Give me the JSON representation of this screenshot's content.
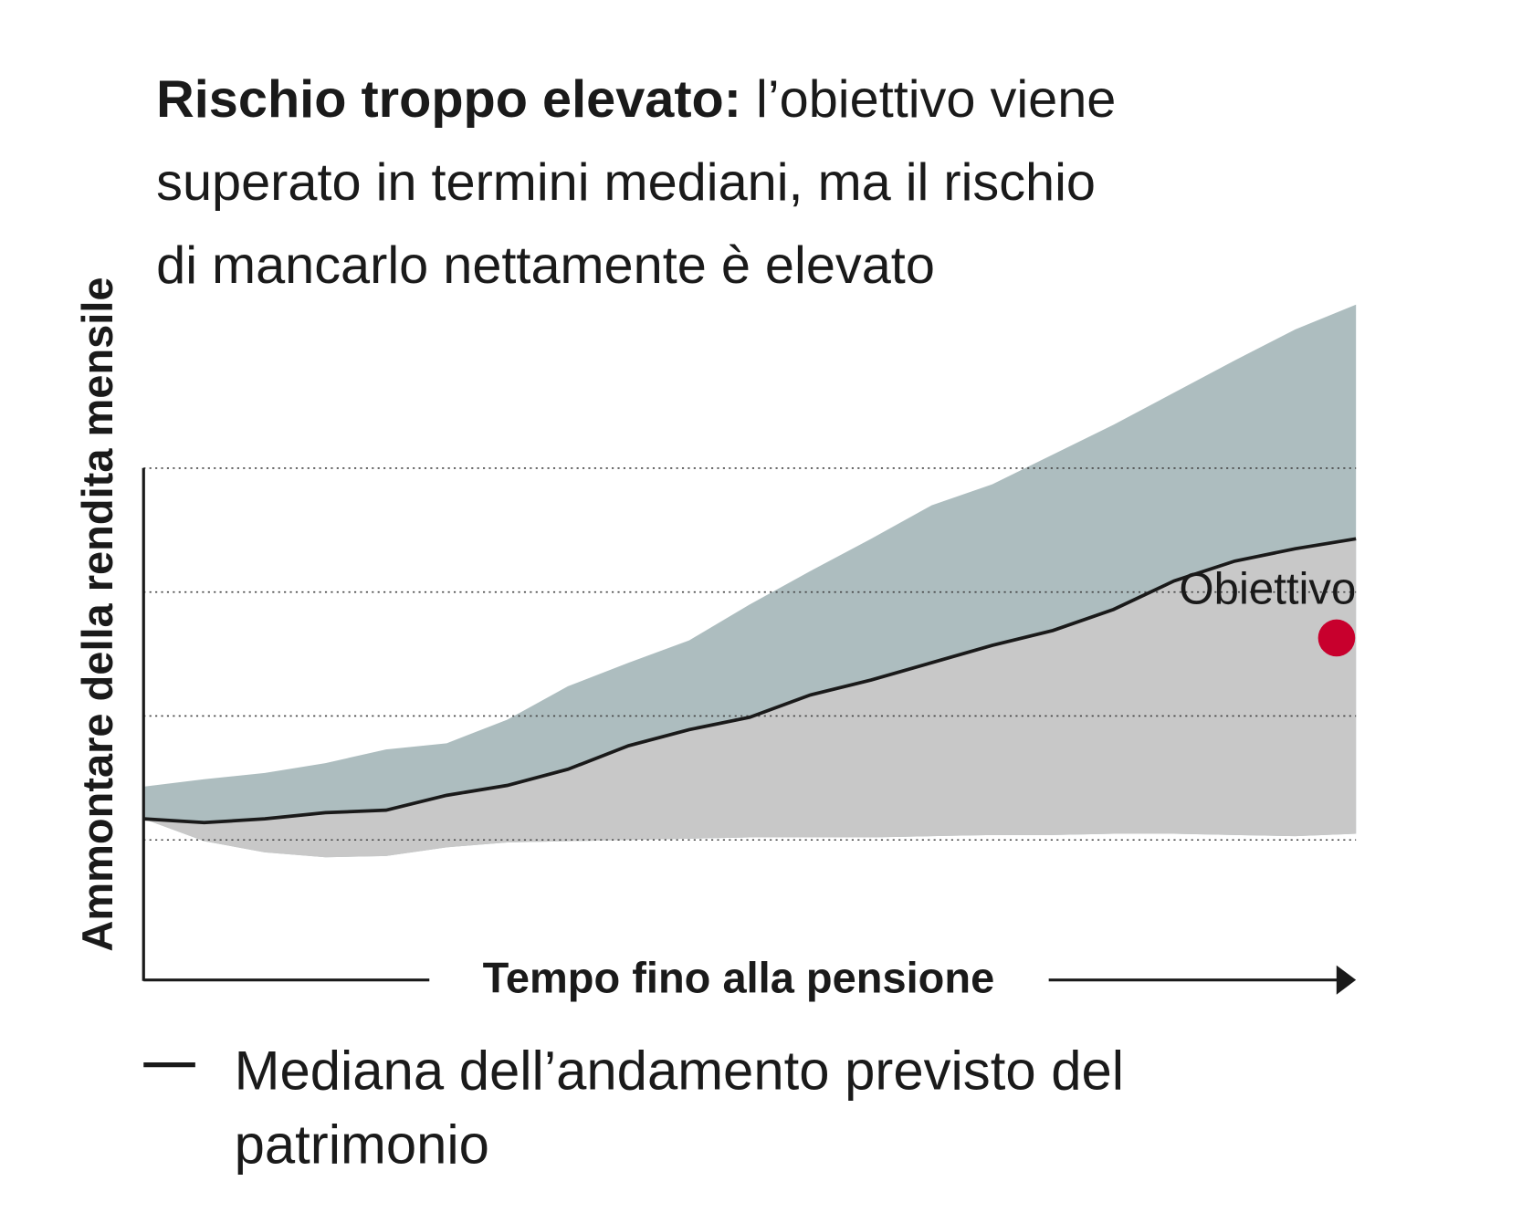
{
  "chart_data": {
    "type": "area",
    "title": {
      "bold": "Rischio troppo elevato:",
      "lines": [
        "l’obiettivo viene",
        "superato in termini mediani, ma il rischio",
        "di mancarlo nettamente è elevato"
      ]
    },
    "x_label": "Tempo fino alla pensione",
    "y_label": "Ammontare della rendita mensile",
    "x": [
      0,
      5,
      10,
      15,
      20,
      25,
      30,
      35,
      40,
      45,
      50,
      55,
      60,
      65,
      70,
      75,
      80,
      85,
      90,
      95,
      100
    ],
    "xlim": [
      0,
      100
    ],
    "ylim": [
      -0.13,
      5.5
    ],
    "yticks": [
      1,
      2,
      3,
      4
    ],
    "grid": true,
    "series": [
      {
        "color": "#adbdbf",
        "values": [
          1.43,
          1.49,
          1.54,
          1.62,
          1.73,
          1.78,
          1.97,
          2.24,
          2.43,
          2.61,
          2.9,
          3.17,
          3.43,
          3.7,
          3.87,
          4.11,
          4.35,
          4.61,
          4.87,
          5.12,
          5.32
        ]
      },
      {
        "name": "Mediana dell’andamento previsto del patrimonio",
        "color": "#1a1a1a",
        "fill": "#c8c8c8",
        "values": [
          1.17,
          1.14,
          1.17,
          1.22,
          1.24,
          1.36,
          1.44,
          1.57,
          1.76,
          1.89,
          1.99,
          2.17,
          2.29,
          2.43,
          2.57,
          2.69,
          2.86,
          3.09,
          3.25,
          3.35,
          3.43
        ]
      },
      {
        "color": "#ffffff",
        "values": [
          1.17,
          0.99,
          0.9,
          0.86,
          0.87,
          0.94,
          0.98,
          0.99,
          1,
          1.01,
          1.02,
          1.02,
          1.02,
          1.03,
          1.04,
          1.04,
          1.05,
          1.05,
          1.04,
          1.03,
          1.05
        ]
      }
    ],
    "target": {
      "label": "Obiettivo",
      "x": 98.4,
      "y": 2.63,
      "color": "#c8002d"
    }
  }
}
